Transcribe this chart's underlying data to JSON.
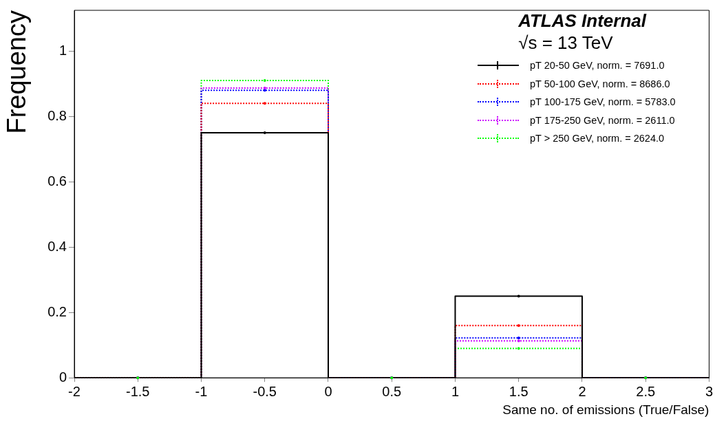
{
  "chart_data": {
    "type": "histogram",
    "xlabel": "Same no. of emissions (True/False)",
    "ylabel": "Frequency",
    "annotations": [
      "ATLAS Internal",
      "√s = 13 TeV"
    ],
    "bins": [
      -2,
      -1,
      0,
      1,
      2,
      3
    ],
    "series": [
      {
        "name": "pT 20-50 GeV, norm. = 7691.0",
        "color": "#000000",
        "line_style": "solid",
        "values": [
          0,
          0.75,
          0,
          0.25,
          0
        ]
      },
      {
        "name": "pT 50-100 GeV, norm. = 8686.0",
        "color": "#ff0000",
        "line_style": "dotted",
        "values": [
          0,
          0.84,
          0,
          0.16,
          0
        ]
      },
      {
        "name": "pT 100-175 GeV, norm. = 5783.0",
        "color": "#0000ff",
        "line_style": "dotted",
        "values": [
          0,
          0.88,
          0,
          0.122,
          0
        ]
      },
      {
        "name": "pT 175-250 GeV, norm. = 2611.0",
        "color": "#cc00ff",
        "line_style": "dotted",
        "values": [
          0,
          0.887,
          0,
          0.113,
          0
        ]
      },
      {
        "name": "pT > 250 GeV, norm. = 2624.0",
        "color": "#00ff00",
        "line_style": "dotted",
        "values": [
          0,
          0.91,
          0,
          0.09,
          0
        ]
      }
    ],
    "xlim": [
      -2,
      3
    ],
    "xticks": [
      -2,
      -1.5,
      -1,
      -0.5,
      0,
      0.5,
      1,
      1.5,
      2,
      2.5,
      3
    ],
    "ylim": [
      0,
      1.125
    ],
    "yticks": [
      0,
      0.2,
      0.4,
      0.6,
      0.8,
      1
    ],
    "grid": false,
    "legend": "top right",
    "marker": "circle"
  }
}
